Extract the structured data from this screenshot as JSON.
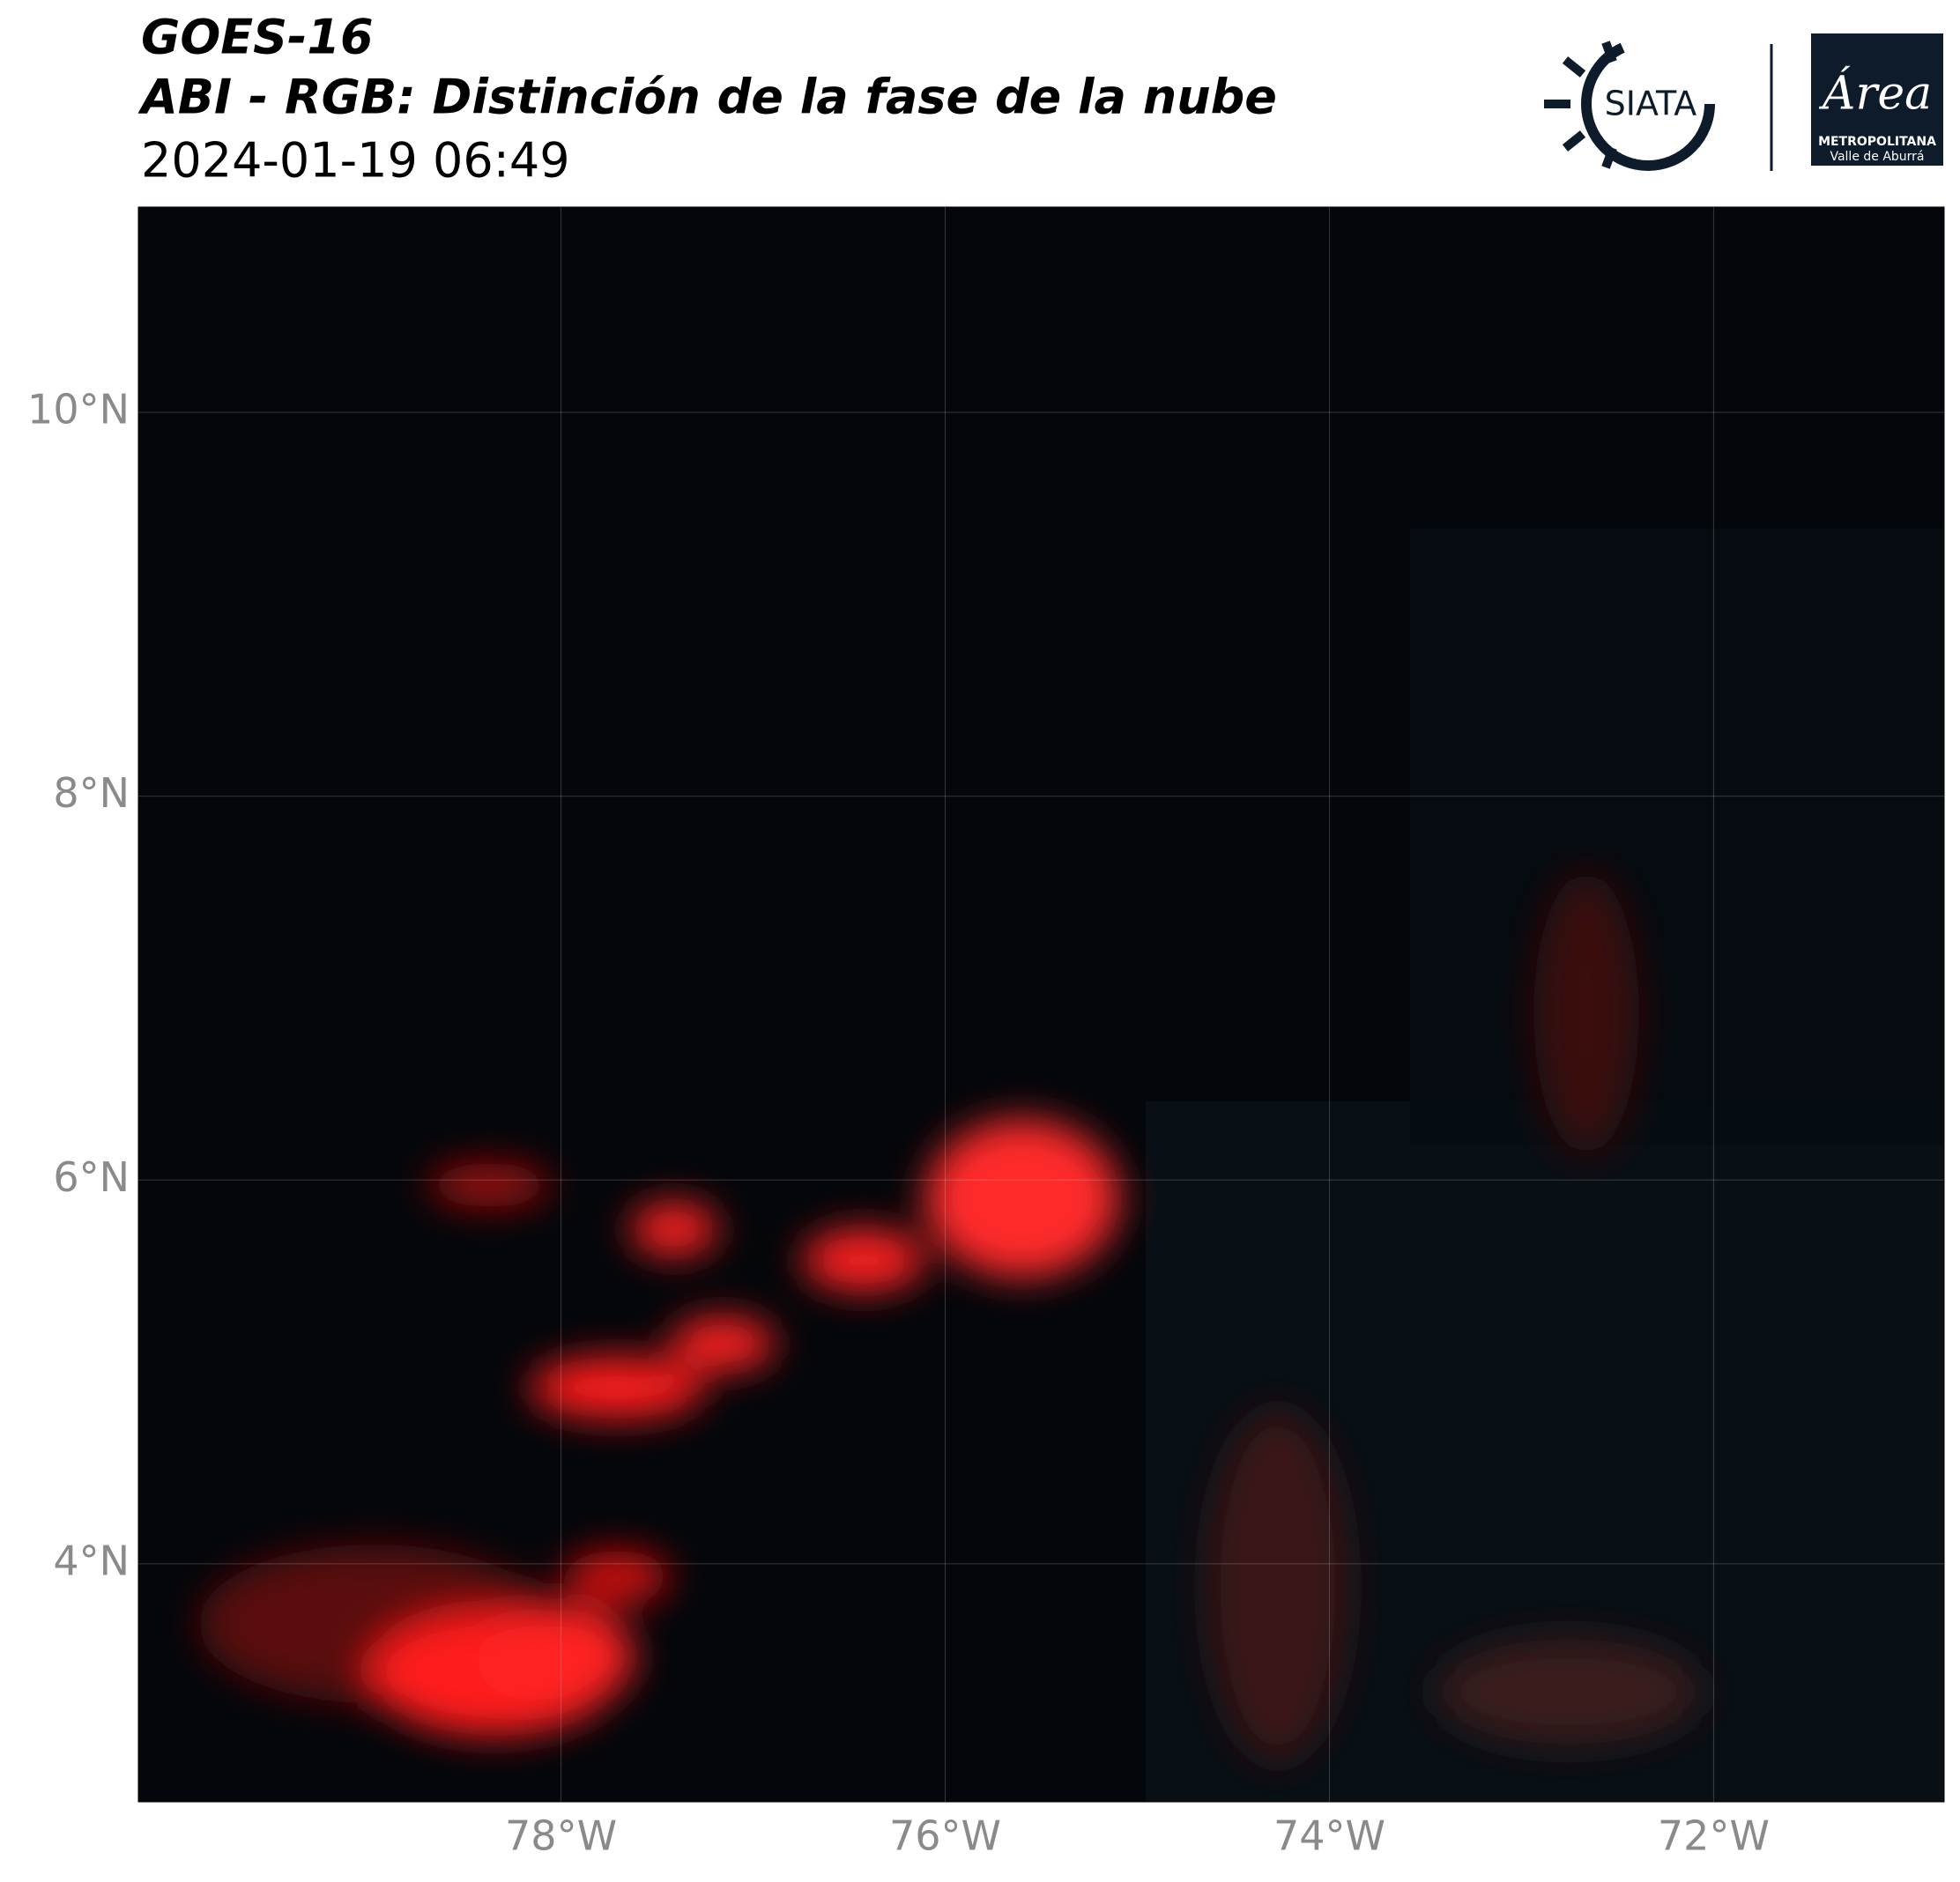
{
  "chart_data": {
    "type": "map",
    "title": "GOES-16",
    "subtitle": "ABI - RGB: Distinción de la fase de la nube",
    "date": "2024-01-19 06:49",
    "logos": {
      "siata": "SIATA",
      "area": "Área",
      "area_line1": "METROPOLITANA",
      "area_line2": "Valle de Aburrá"
    },
    "xlim": [
      -80.2,
      -70.8
    ],
    "ylim": [
      2.76,
      11.07
    ],
    "xticks": [
      {
        "value": -78,
        "label": "78°W"
      },
      {
        "value": -76,
        "label": "76°W"
      },
      {
        "value": -74,
        "label": "74°W"
      },
      {
        "value": -72,
        "label": "72°W"
      }
    ],
    "yticks": [
      {
        "value": 4,
        "label": "4°N"
      },
      {
        "value": 6,
        "label": "6°N"
      },
      {
        "value": 8,
        "label": "8°N"
      },
      {
        "value": 10,
        "label": "10°N"
      }
    ],
    "grid": true
  }
}
